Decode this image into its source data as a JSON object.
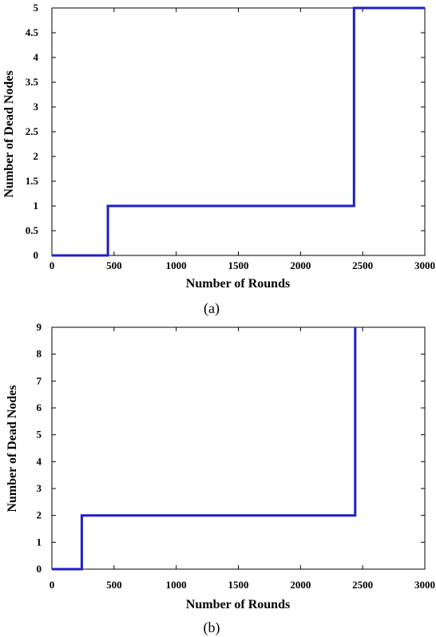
{
  "chart_data": [
    {
      "type": "line",
      "panel_label": "(a)",
      "xlabel": "Number of Rounds",
      "ylabel": "Number of Dead Nodes",
      "xlim": [
        0,
        3000
      ],
      "ylim": [
        0,
        5
      ],
      "xticks": [
        0,
        500,
        1000,
        1500,
        2000,
        2500,
        3000
      ],
      "yticks": [
        0,
        0.5,
        1,
        1.5,
        2,
        2.5,
        3,
        3.5,
        4,
        4.5,
        5
      ],
      "xtick_labels": [
        "0",
        "500",
        "1000",
        "1500",
        "2000",
        "2500",
        "3000"
      ],
      "ytick_labels": [
        "0",
        "0.5",
        "1",
        "1.5",
        "2",
        "2.5",
        "3",
        "3.5",
        "4",
        "4.5",
        "5"
      ],
      "grid": false,
      "series": [
        {
          "color": "#1f1fc8",
          "x": [
            0,
            450,
            450,
            2430,
            2430,
            3000
          ],
          "y": [
            0,
            0,
            1,
            1,
            5,
            5
          ]
        }
      ]
    },
    {
      "type": "line",
      "panel_label": "(b)",
      "xlabel": "Number of Rounds",
      "ylabel": "Number of Dead Nodes",
      "xlim": [
        0,
        3000
      ],
      "ylim": [
        0,
        9
      ],
      "xticks": [
        0,
        500,
        1000,
        1500,
        2000,
        2500,
        3000
      ],
      "yticks": [
        0,
        1,
        2,
        3,
        4,
        5,
        6,
        7,
        8,
        9
      ],
      "xtick_labels": [
        "0",
        "500",
        "1000",
        "1500",
        "2000",
        "2500",
        "3000"
      ],
      "ytick_labels": [
        "0",
        "1",
        "2",
        "3",
        "4",
        "5",
        "6",
        "7",
        "8",
        "9"
      ],
      "grid": false,
      "series": [
        {
          "color": "#1f1fc8",
          "x": [
            0,
            240,
            240,
            2440,
            2440
          ],
          "y": [
            0,
            0,
            2,
            2,
            9
          ]
        }
      ]
    }
  ]
}
